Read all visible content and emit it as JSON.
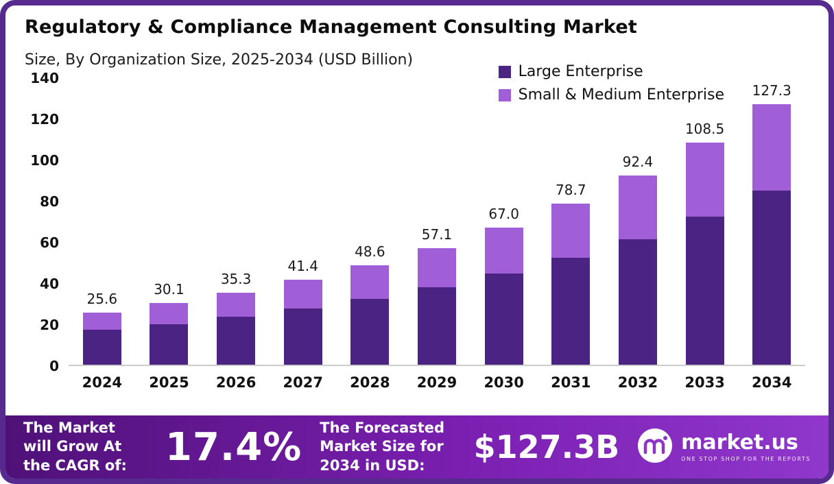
{
  "title": "Regulatory & Compliance Management Consulting Market",
  "subtitle": "Size, By Organization Size, 2025-2034 (USD Billion)",
  "legend": [
    {
      "label": "Large Enterprise",
      "color": "#4b2383"
    },
    {
      "label": "Small & Medium Enterprise",
      "color": "#a05fd6"
    }
  ],
  "chart_data": {
    "type": "bar",
    "stacked": true,
    "title": "Regulatory & Compliance Management Consulting Market Size, By Organization Size, 2025-2034 (USD Billion)",
    "categories": [
      "2024",
      "2025",
      "2026",
      "2027",
      "2028",
      "2029",
      "2030",
      "2031",
      "2032",
      "2033",
      "2034"
    ],
    "series": [
      {
        "name": "Large Enterprise",
        "color": "#4b2383",
        "values": [
          17.1,
          19.9,
          23.4,
          27.4,
          32.2,
          37.9,
          44.5,
          52.3,
          61.4,
          72.2,
          85.0
        ]
      },
      {
        "name": "Small & Medium Enterprise",
        "color": "#a05fd6",
        "values": [
          8.5,
          10.2,
          11.9,
          14.0,
          16.4,
          19.2,
          22.5,
          26.4,
          31.0,
          36.3,
          42.3
        ]
      }
    ],
    "totals": [
      25.6,
      30.1,
      35.3,
      41.4,
      48.6,
      57.1,
      67.0,
      78.7,
      92.4,
      108.5,
      127.3
    ],
    "total_labels": [
      "25.6",
      "30.1",
      "35.3",
      "41.4",
      "48.6",
      "57.1",
      "67.0",
      "78.7",
      "92.4",
      "108.5",
      "127.3"
    ],
    "xlabel": "",
    "ylabel": "",
    "ylim": [
      0,
      140
    ],
    "yticks": [
      0,
      20,
      40,
      60,
      80,
      100,
      120,
      140
    ],
    "grid": false,
    "legend_position": "top-right"
  },
  "footer": {
    "cagr_label": "The Market will Grow At the CAGR of:",
    "cagr_value": "17.4%",
    "forecast_label": "The Forecasted Market Size for 2034 in USD:",
    "forecast_value": "$127.3B",
    "brand": "market.us",
    "brand_tagline": "ONE STOP SHOP FOR THE REPORTS"
  }
}
